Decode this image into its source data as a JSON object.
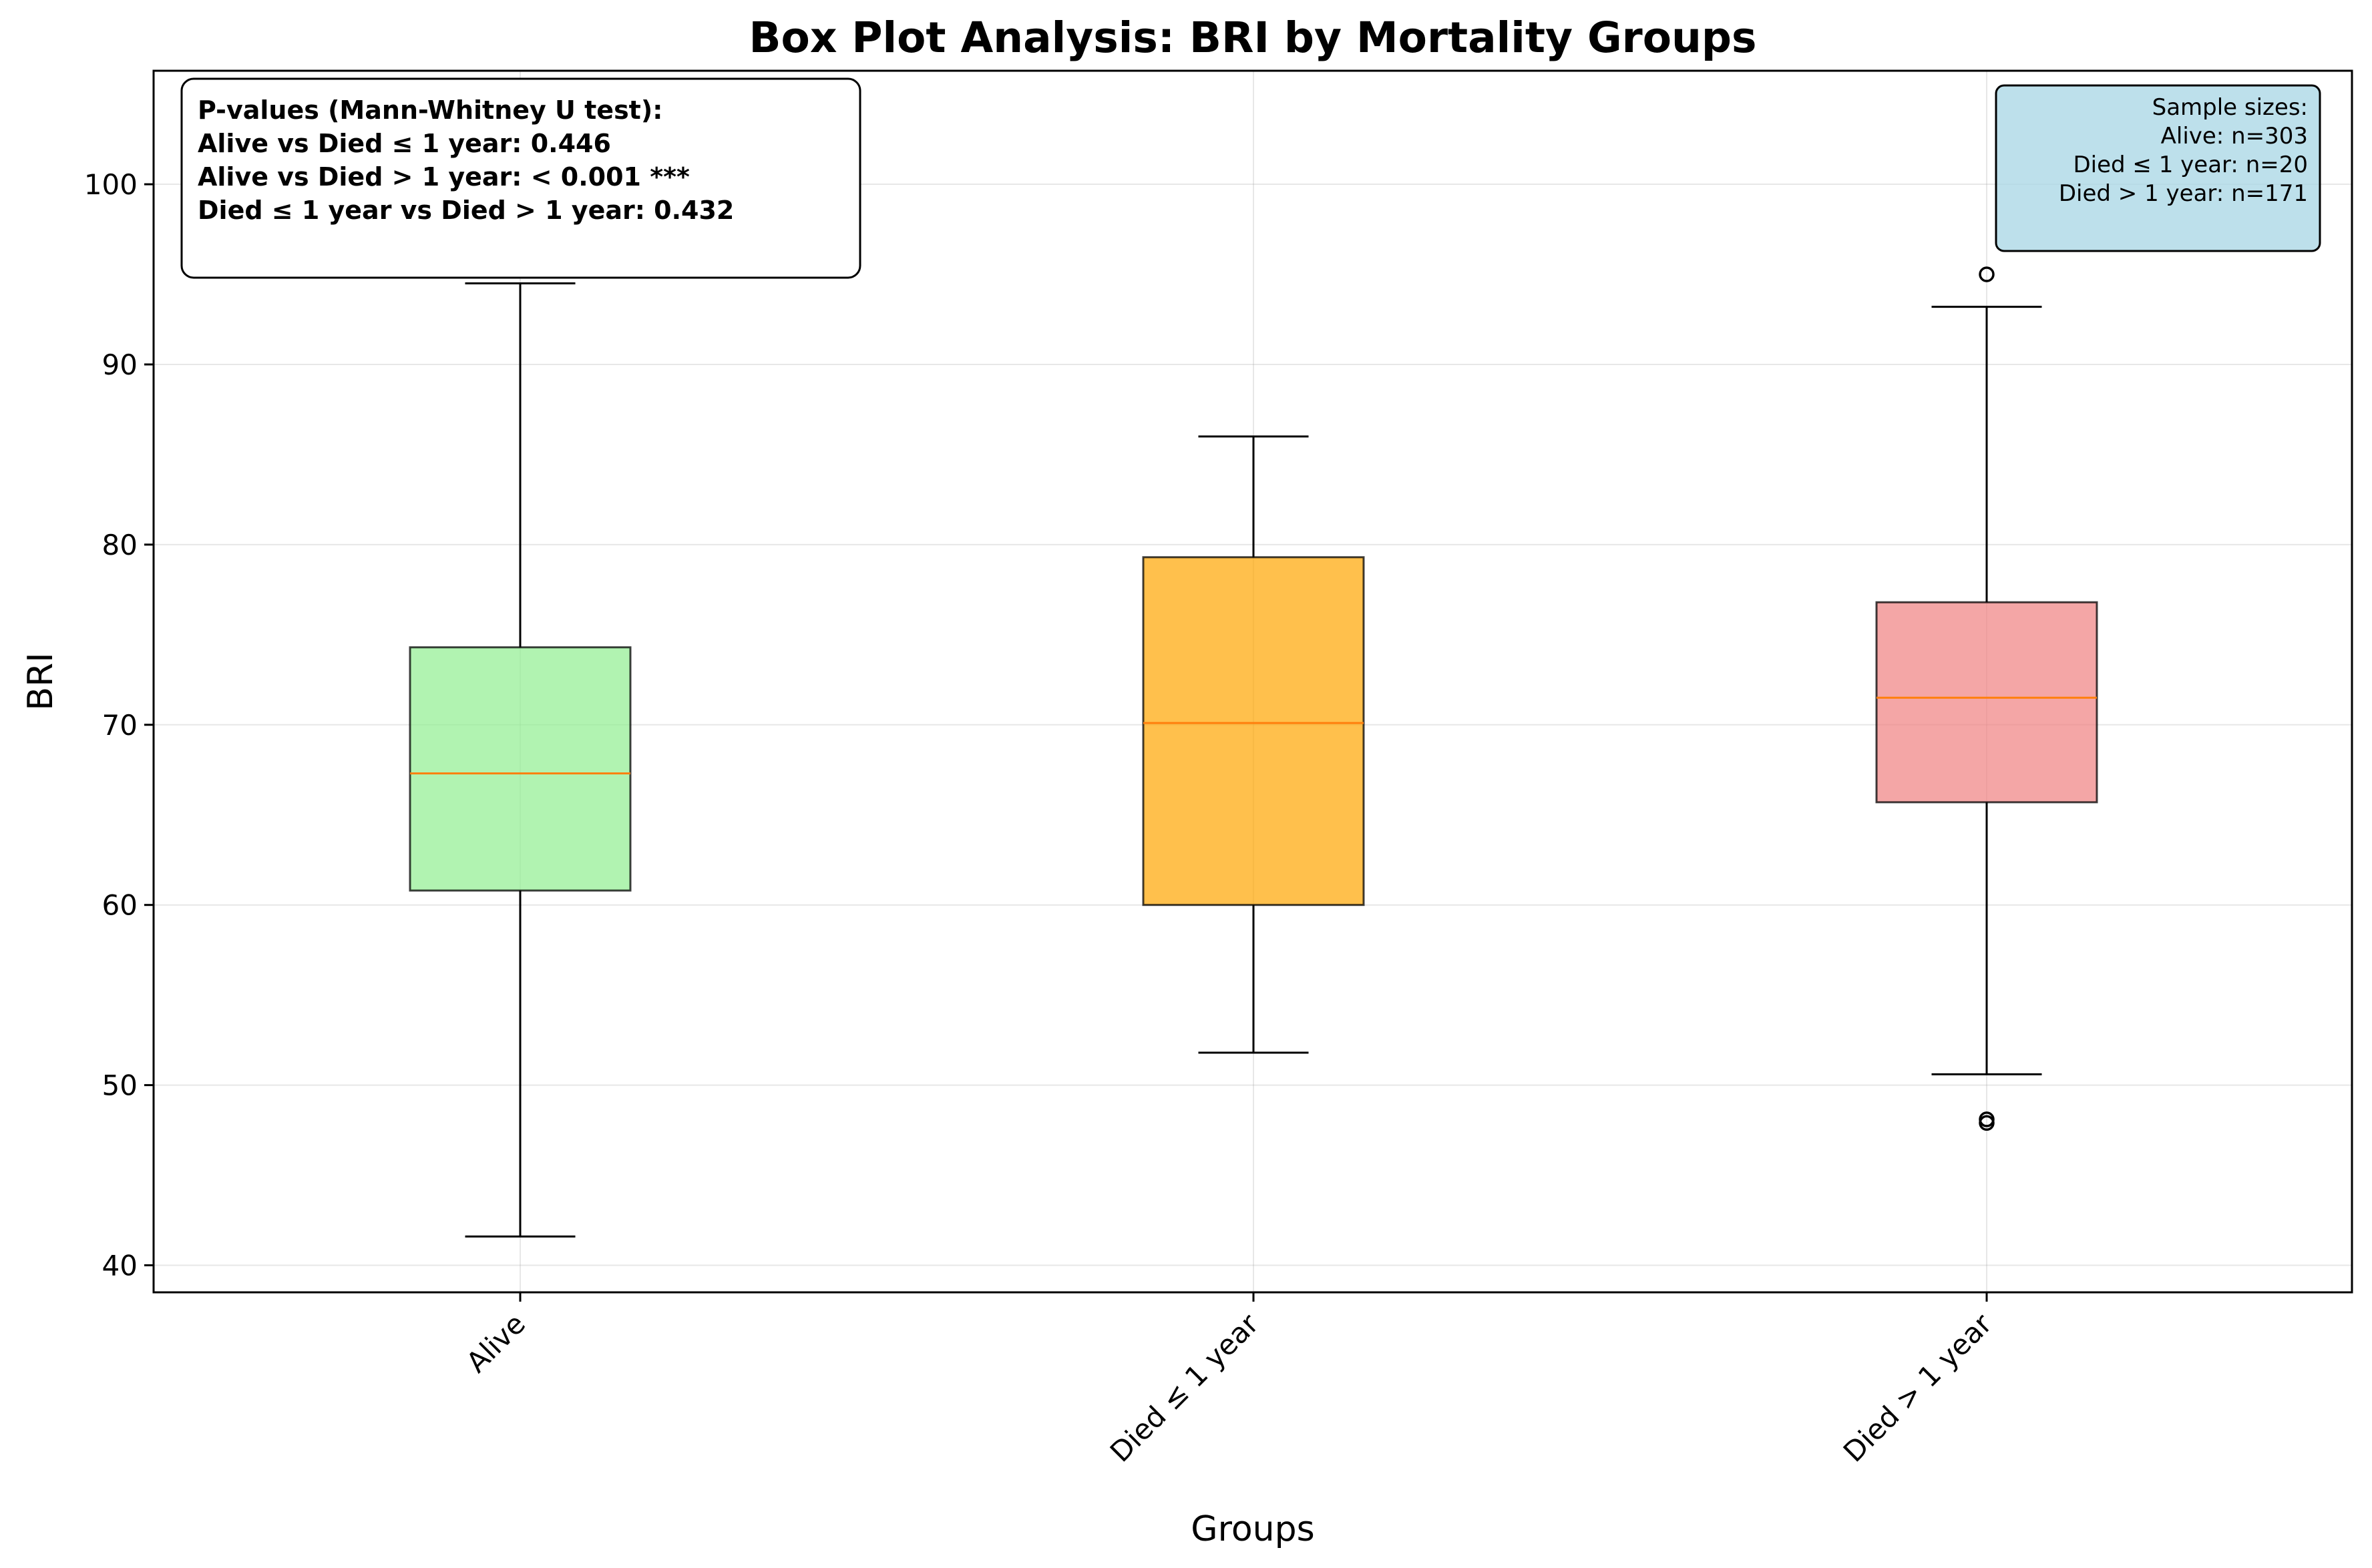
{
  "chart_data": {
    "type": "box",
    "title": "Box Plot Analysis: BRI by Mortality Groups",
    "xlabel": "Groups",
    "ylabel": "BRI",
    "ylim": [
      38.5,
      106.3
    ],
    "yticks": [
      40,
      50,
      60,
      70,
      80,
      90,
      100
    ],
    "grid": true,
    "categories": [
      "Alive",
      "Died ≤ 1 year",
      "Died > 1 year"
    ],
    "boxes": [
      {
        "whisker_low": 41.6,
        "q1": 60.8,
        "median": 67.3,
        "q3": 74.3,
        "whisker_high": 94.5,
        "outliers": [],
        "color": "#90ee90"
      },
      {
        "whisker_low": 51.8,
        "q1": 60.0,
        "median": 70.1,
        "q3": 79.3,
        "whisker_high": 86.0,
        "outliers": [],
        "color": "#ffa500"
      },
      {
        "whisker_low": 50.6,
        "q1": 65.7,
        "median": 71.5,
        "q3": 76.8,
        "whisker_high": 93.2,
        "outliers": [
          95.0,
          48.1,
          47.9
        ],
        "color": "#f08080"
      }
    ],
    "median_color": "#ff7f0e",
    "pvalue_box": {
      "title": "P-values (Mann-Whitney U test):",
      "lines": [
        "Alive vs Died ≤ 1 year: 0.446",
        "Alive vs Died > 1 year: < 0.001 ***",
        "Died ≤ 1 year vs Died > 1 year: 0.432"
      ]
    },
    "sample_box": {
      "title": "Sample sizes:",
      "lines": [
        "Alive: n=303",
        "Died ≤ 1 year: n=20",
        "Died > 1 year: n=171"
      ],
      "color": "#add8e6"
    }
  }
}
